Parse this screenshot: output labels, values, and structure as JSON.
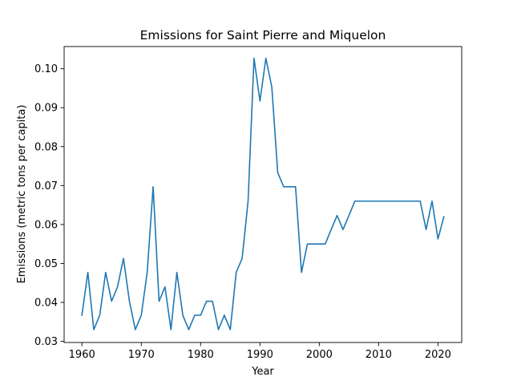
{
  "chart_data": {
    "type": "line",
    "title": "Emissions for Saint Pierre and Miquelon",
    "xlabel": "Year",
    "ylabel": "Emissions (metric tons per capita)",
    "xlim": [
      1957,
      2024
    ],
    "ylim": [
      0.0297,
      0.1057
    ],
    "x_ticks": [
      1960,
      1970,
      1980,
      1990,
      2000,
      2010,
      2020
    ],
    "x_tick_labels": [
      "1960",
      "1970",
      "1980",
      "1990",
      "2000",
      "2010",
      "2020"
    ],
    "y_ticks": [
      0.03,
      0.04,
      0.05,
      0.06,
      0.07,
      0.08,
      0.09,
      0.1
    ],
    "y_tick_labels": [
      "0.03",
      "0.04",
      "0.05",
      "0.06",
      "0.07",
      "0.08",
      "0.09",
      "0.10"
    ],
    "grid": false,
    "line_color": "#1f77b4",
    "series": [
      {
        "x": [
          1960,
          1961,
          1962,
          1963,
          1964,
          1965,
          1966,
          1967,
          1968,
          1969,
          1970,
          1971,
          1972,
          1973,
          1974,
          1975,
          1976,
          1977,
          1978,
          1979,
          1980,
          1981,
          1982,
          1983,
          1984,
          1985,
          1986,
          1987,
          1988,
          1989,
          1990,
          1991,
          1992,
          1993,
          1994,
          1995,
          1996,
          1997,
          1998,
          1999,
          2000,
          2001,
          2002,
          2003,
          2004,
          2005,
          2006,
          2007,
          2008,
          2009,
          2010,
          2011,
          2012,
          2013,
          2014,
          2015,
          2016,
          2017,
          2018,
          2019,
          2020,
          2021
        ],
        "values": [
          0.0367,
          0.0477,
          0.033,
          0.0367,
          0.0477,
          0.0403,
          0.044,
          0.0513,
          0.0403,
          0.033,
          0.0367,
          0.0477,
          0.0697,
          0.0403,
          0.044,
          0.033,
          0.0477,
          0.0367,
          0.033,
          0.0367,
          0.0367,
          0.0403,
          0.0403,
          0.033,
          0.0367,
          0.033,
          0.0477,
          0.0513,
          0.066,
          0.1027,
          0.0917,
          0.1027,
          0.0953,
          0.0733,
          0.0697,
          0.0697,
          0.0697,
          0.0477,
          0.055,
          0.055,
          0.055,
          0.055,
          0.0587,
          0.0623,
          0.0587,
          0.0623,
          0.066,
          0.066,
          0.066,
          0.066,
          0.066,
          0.066,
          0.066,
          0.066,
          0.066,
          0.066,
          0.066,
          0.066,
          0.0587,
          0.066,
          0.0563,
          0.062
        ]
      }
    ]
  }
}
